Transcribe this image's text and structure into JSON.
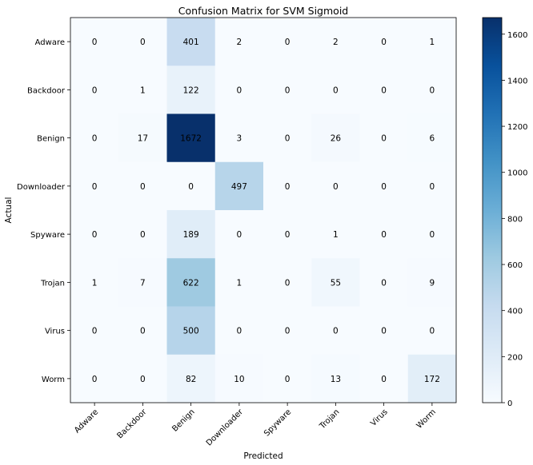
{
  "chart_data": {
    "type": "heatmap",
    "title": "Confusion Matrix for SVM Sigmoid",
    "xlabel": "Predicted",
    "ylabel": "Actual",
    "x_categories": [
      "Adware",
      "Backdoor",
      "Benign",
      "Downloader",
      "Spyware",
      "Trojan",
      "Virus",
      "Worm"
    ],
    "y_categories": [
      "Adware",
      "Backdoor",
      "Benign",
      "Downloader",
      "Spyware",
      "Trojan",
      "Virus",
      "Worm"
    ],
    "values": [
      [
        0,
        0,
        401,
        2,
        0,
        2,
        0,
        1
      ],
      [
        0,
        1,
        122,
        0,
        0,
        0,
        0,
        0
      ],
      [
        0,
        17,
        1672,
        3,
        0,
        26,
        0,
        6
      ],
      [
        0,
        0,
        0,
        497,
        0,
        0,
        0,
        0
      ],
      [
        0,
        0,
        189,
        0,
        0,
        1,
        0,
        0
      ],
      [
        1,
        7,
        622,
        1,
        0,
        55,
        0,
        9
      ],
      [
        0,
        0,
        500,
        0,
        0,
        0,
        0,
        0
      ],
      [
        0,
        0,
        82,
        10,
        0,
        13,
        0,
        172
      ]
    ],
    "colormap": "Blues",
    "colorbar": {
      "vmin": 0,
      "vmax": 1672,
      "ticks": [
        0,
        200,
        400,
        600,
        800,
        1000,
        1200,
        1400,
        1600
      ]
    }
  }
}
